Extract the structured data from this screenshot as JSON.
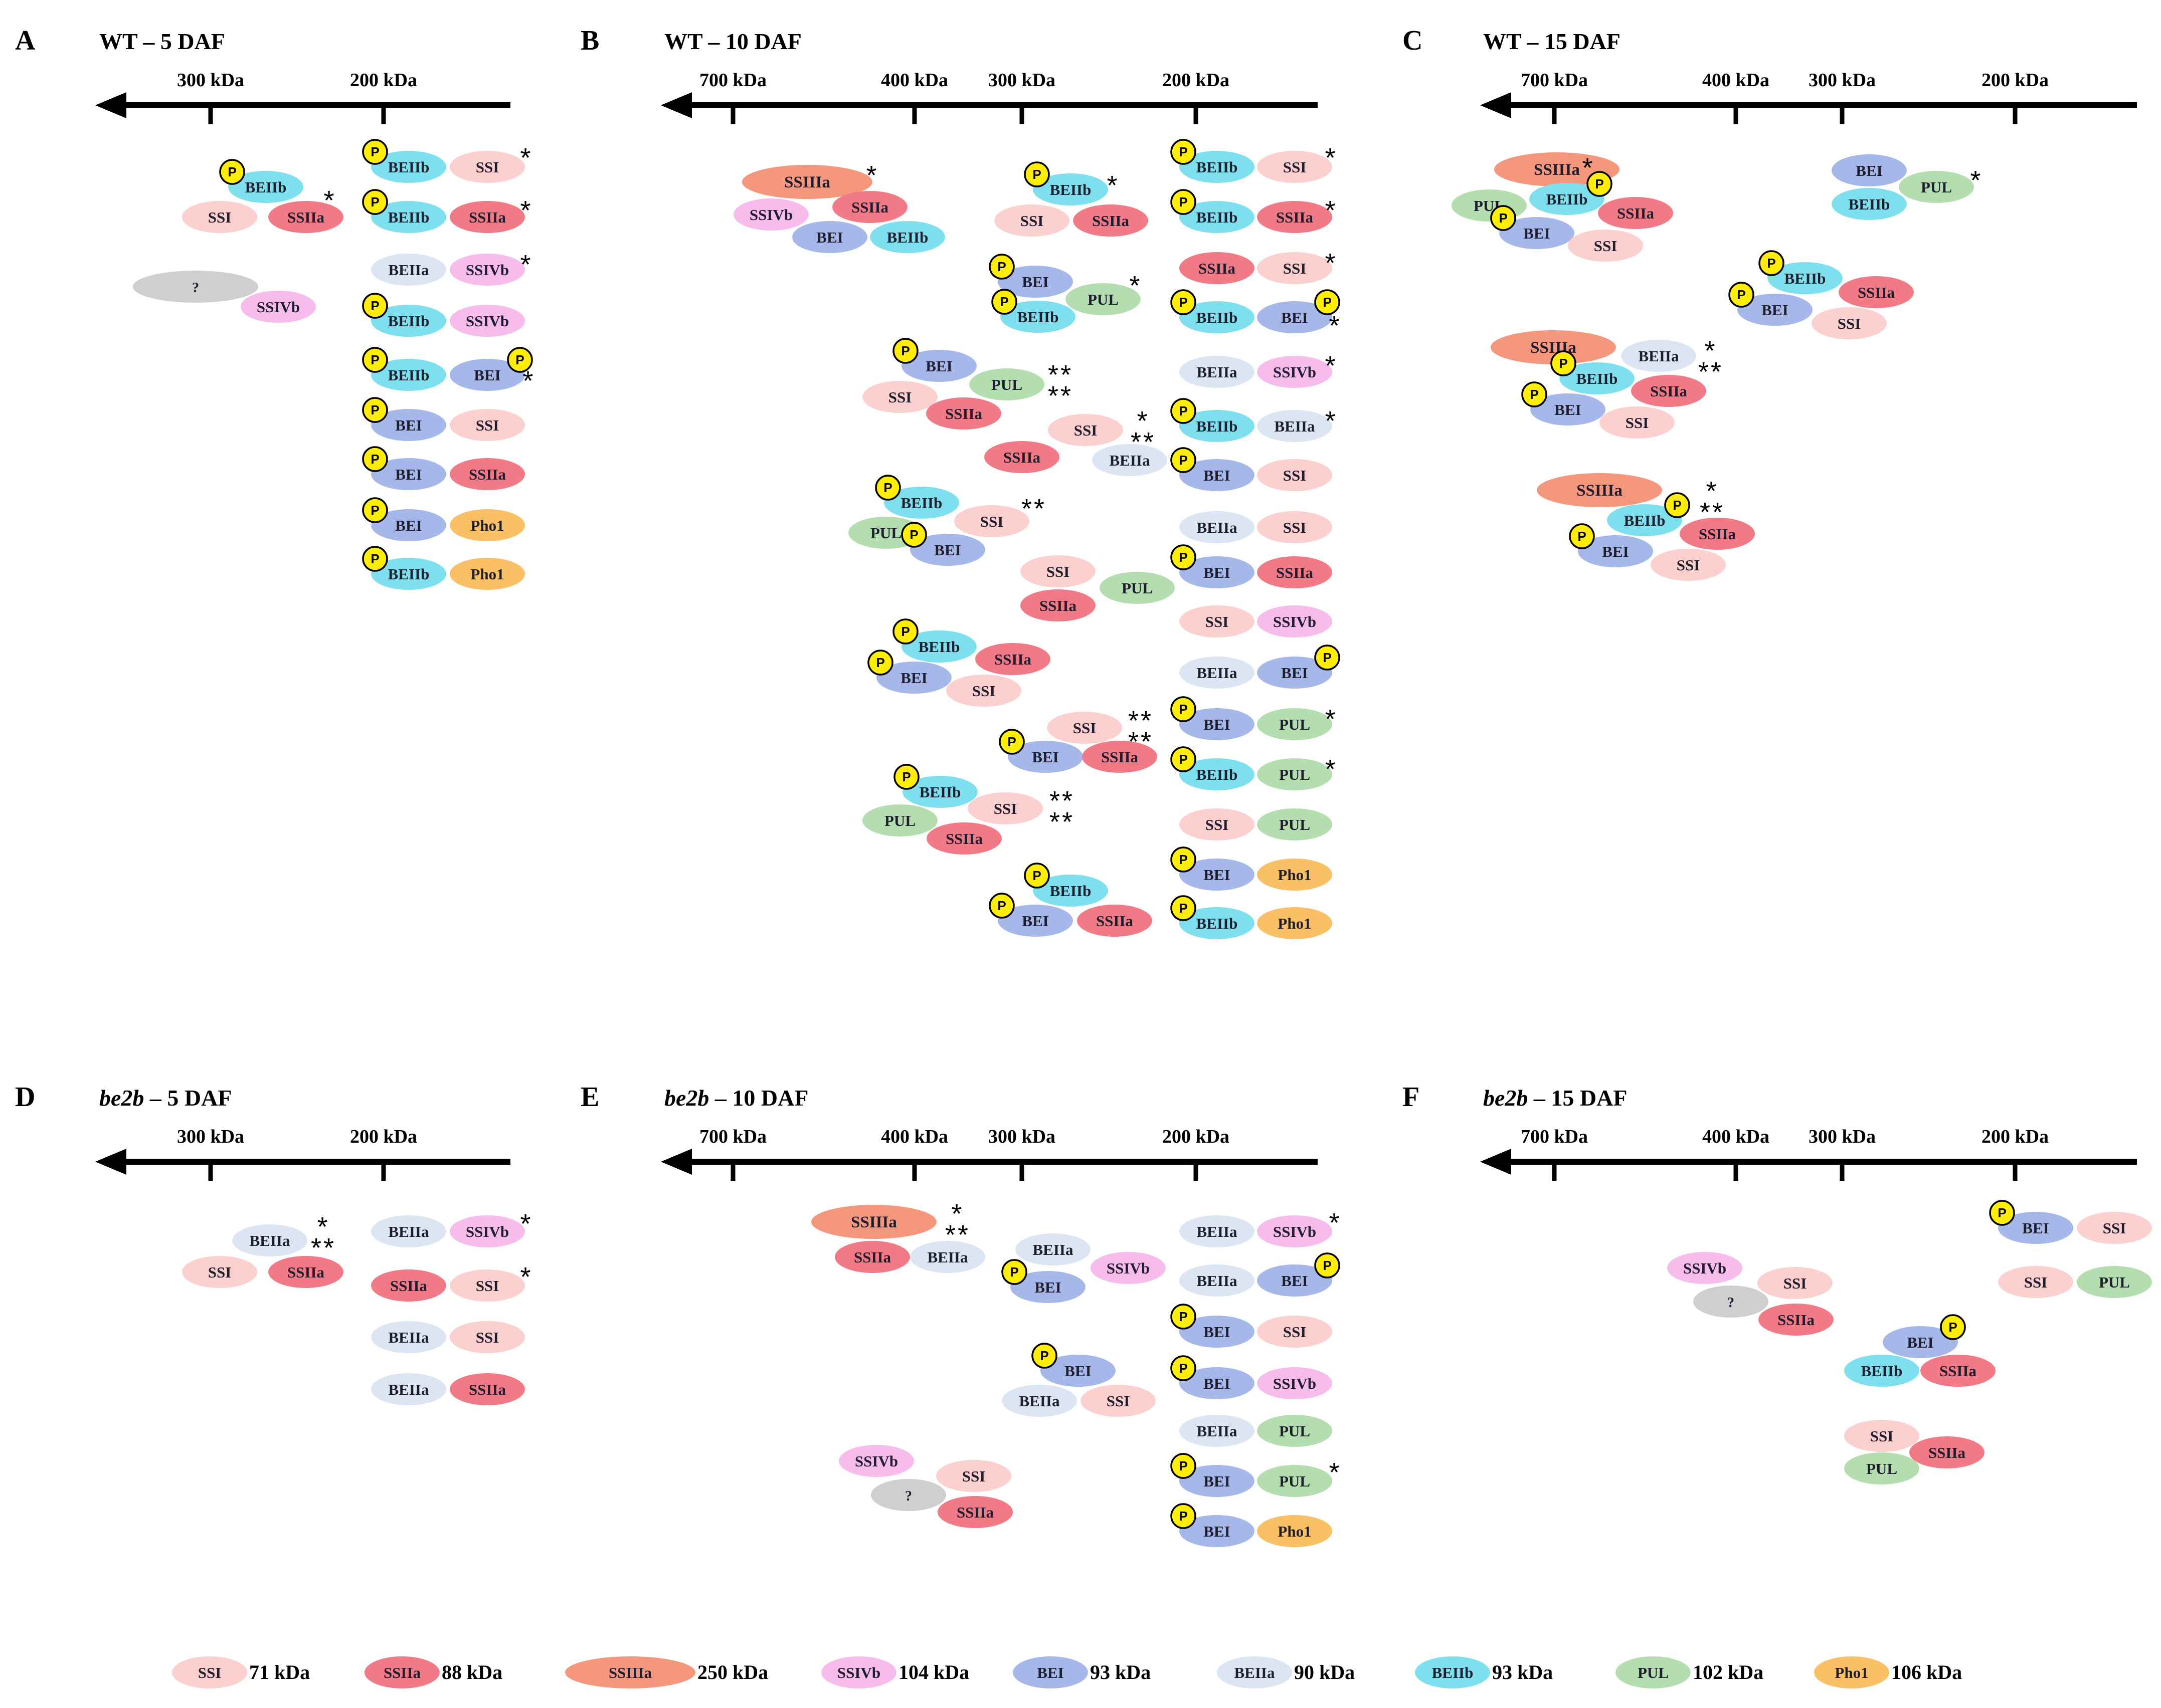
{
  "colors": {
    "SSI": "#fbd0ce",
    "SSIIa": "#f27a86",
    "SSIIIa": "#f5977c",
    "SSIVb": "#f7bcec",
    "BEI": "#a6b8ea",
    "BEIIa": "#dbe5f4",
    "BEIIb": "#7ee0ee",
    "PUL": "#b4deaf",
    "Pho1": "#f9c065",
    "unknown": "#cfcfcf",
    "phospho": "#ffee00"
  },
  "phospho_label": "P",
  "panels": [
    {
      "letter": "A",
      "title_italic": "",
      "title_rest": "WT – 5 DAF",
      "ticks": [
        {
          "label": "300 kDa"
        },
        {
          "label": "200 kDa"
        }
      ],
      "complexes": [
        {
          "marks": [
            "*"
          ],
          "proteins": [
            {
              "name": "BEIIb",
              "p": true
            },
            {
              "name": "SSI"
            },
            {
              "name": "SSIIa"
            }
          ]
        },
        {
          "marks": [],
          "proteins": [
            {
              "name": "?"
            },
            {
              "name": "SSIVb"
            }
          ]
        },
        {
          "marks": [
            "*"
          ],
          "proteins": [
            {
              "name": "BEIIb",
              "p": true
            },
            {
              "name": "SSI"
            }
          ]
        },
        {
          "marks": [
            "*"
          ],
          "proteins": [
            {
              "name": "BEIIb",
              "p": true
            },
            {
              "name": "SSIIa"
            }
          ]
        },
        {
          "marks": [
            "*"
          ],
          "proteins": [
            {
              "name": "BEIIa"
            },
            {
              "name": "SSIVb"
            }
          ]
        },
        {
          "marks": [],
          "proteins": [
            {
              "name": "BEIIb",
              "p": true
            },
            {
              "name": "SSIVb"
            }
          ]
        },
        {
          "marks": [
            "*"
          ],
          "proteins": [
            {
              "name": "BEIIb",
              "p": true
            },
            {
              "name": "BEI",
              "p": true
            }
          ]
        },
        {
          "marks": [],
          "proteins": [
            {
              "name": "BEI",
              "p": true
            },
            {
              "name": "SSI"
            }
          ]
        },
        {
          "marks": [],
          "proteins": [
            {
              "name": "BEI",
              "p": true
            },
            {
              "name": "SSIIa"
            }
          ]
        },
        {
          "marks": [],
          "proteins": [
            {
              "name": "BEI",
              "p": true
            },
            {
              "name": "Pho1"
            }
          ]
        },
        {
          "marks": [],
          "proteins": [
            {
              "name": "BEIIb",
              "p": true
            },
            {
              "name": "Pho1"
            }
          ]
        }
      ]
    },
    {
      "letter": "B",
      "title_italic": "",
      "title_rest": "WT – 10 DAF",
      "ticks": [
        {
          "label": "700 kDa"
        },
        {
          "label": "400 kDa"
        },
        {
          "label": "300 kDa"
        },
        {
          "label": "200 kDa"
        }
      ],
      "complexes": [
        {
          "marks": [
            "*"
          ],
          "proteins": [
            {
              "name": "SSIIIa"
            },
            {
              "name": "SSIVb"
            },
            {
              "name": "SSIIa"
            },
            {
              "name": "BEI"
            },
            {
              "name": "BEIIb"
            }
          ]
        },
        {
          "marks": [
            "*"
          ],
          "proteins": [
            {
              "name": "BEIIb",
              "p": true
            },
            {
              "name": "SSI"
            },
            {
              "name": "SSIIa"
            }
          ]
        },
        {
          "marks": [
            "*"
          ],
          "proteins": [
            {
              "name": "BEI",
              "p": true
            },
            {
              "name": "PUL"
            },
            {
              "name": "BEIIb",
              "p": true
            }
          ]
        },
        {
          "marks": [
            "**",
            "**"
          ],
          "proteins": [
            {
              "name": "BEI",
              "p": true
            },
            {
              "name": "PUL"
            },
            {
              "name": "SSI"
            },
            {
              "name": "SSIIa"
            }
          ]
        },
        {
          "marks": [
            "*",
            "**"
          ],
          "proteins": [
            {
              "name": "SSI"
            },
            {
              "name": "SSIIa"
            },
            {
              "name": "BEIIa"
            }
          ]
        },
        {
          "marks": [
            "**"
          ],
          "proteins": [
            {
              "name": "BEIIb",
              "p": true
            },
            {
              "name": "SSI"
            },
            {
              "name": "PUL"
            },
            {
              "name": "BEI",
              "p": true
            }
          ]
        },
        {
          "marks": [],
          "proteins": [
            {
              "name": "SSI"
            },
            {
              "name": "PUL"
            },
            {
              "name": "SSIIa"
            }
          ]
        },
        {
          "marks": [],
          "proteins": [
            {
              "name": "BEIIb",
              "p": true
            },
            {
              "name": "SSIIa"
            },
            {
              "name": "BEI",
              "p": true
            },
            {
              "name": "SSI"
            }
          ]
        },
        {
          "marks": [
            "**",
            "**"
          ],
          "proteins": [
            {
              "name": "SSI"
            },
            {
              "name": "BEI",
              "p": true
            },
            {
              "name": "SSIIa"
            }
          ]
        },
        {
          "marks": [
            "**",
            "**"
          ],
          "proteins": [
            {
              "name": "BEIIb",
              "p": true
            },
            {
              "name": "SSI"
            },
            {
              "name": "PUL"
            },
            {
              "name": "SSIIa"
            }
          ]
        },
        {
          "marks": [],
          "proteins": [
            {
              "name": "BEIIb",
              "p": true
            },
            {
              "name": "BEI",
              "p": true
            },
            {
              "name": "SSIIa"
            }
          ]
        },
        {
          "marks": [
            "*"
          ],
          "proteins": [
            {
              "name": "BEIIb",
              "p": true
            },
            {
              "name": "SSI"
            }
          ]
        },
        {
          "marks": [
            "*"
          ],
          "proteins": [
            {
              "name": "BEIIb",
              "p": true
            },
            {
              "name": "SSIIa"
            }
          ]
        },
        {
          "marks": [
            "*"
          ],
          "proteins": [
            {
              "name": "SSIIa"
            },
            {
              "name": "SSI"
            }
          ]
        },
        {
          "marks": [
            "*"
          ],
          "proteins": [
            {
              "name": "BEIIb",
              "p": true
            },
            {
              "name": "BEI",
              "p": true
            }
          ]
        },
        {
          "marks": [
            "*"
          ],
          "proteins": [
            {
              "name": "BEIIa"
            },
            {
              "name": "SSIVb"
            }
          ]
        },
        {
          "marks": [
            "*"
          ],
          "proteins": [
            {
              "name": "BEIIb",
              "p": true
            },
            {
              "name": "BEIIa"
            }
          ]
        },
        {
          "marks": [],
          "proteins": [
            {
              "name": "BEI",
              "p": true
            },
            {
              "name": "SSI"
            }
          ]
        },
        {
          "marks": [],
          "proteins": [
            {
              "name": "BEIIa"
            },
            {
              "name": "SSI"
            }
          ]
        },
        {
          "marks": [],
          "proteins": [
            {
              "name": "BEI",
              "p": true
            },
            {
              "name": "SSIIa"
            }
          ]
        },
        {
          "marks": [],
          "proteins": [
            {
              "name": "SSI"
            },
            {
              "name": "SSIVb"
            }
          ]
        },
        {
          "marks": [],
          "proteins": [
            {
              "name": "BEIIa"
            },
            {
              "name": "BEI",
              "p": true
            }
          ]
        },
        {
          "marks": [
            "*"
          ],
          "proteins": [
            {
              "name": "BEI",
              "p": true
            },
            {
              "name": "PUL"
            }
          ]
        },
        {
          "marks": [
            "*"
          ],
          "proteins": [
            {
              "name": "BEIIb",
              "p": true
            },
            {
              "name": "PUL"
            }
          ]
        },
        {
          "marks": [],
          "proteins": [
            {
              "name": "SSI"
            },
            {
              "name": "PUL"
            }
          ]
        },
        {
          "marks": [],
          "proteins": [
            {
              "name": "BEI",
              "p": true
            },
            {
              "name": "Pho1"
            }
          ]
        },
        {
          "marks": [],
          "proteins": [
            {
              "name": "BEIIb",
              "p": true
            },
            {
              "name": "Pho1"
            }
          ]
        }
      ]
    },
    {
      "letter": "C",
      "title_italic": "",
      "title_rest": "WT – 15 DAF",
      "ticks": [
        {
          "label": "700 kDa"
        },
        {
          "label": "400 kDa"
        },
        {
          "label": "300 kDa"
        },
        {
          "label": "200 kDa"
        }
      ],
      "complexes": [
        {
          "marks": [
            "*"
          ],
          "proteins": [
            {
              "name": "SSIIIa"
            },
            {
              "name": "PUL"
            },
            {
              "name": "BEIIb",
              "p": true
            },
            {
              "name": "SSIIa"
            },
            {
              "name": "BEI",
              "p": true
            },
            {
              "name": "SSI"
            }
          ]
        },
        {
          "marks": [
            "*"
          ],
          "proteins": [
            {
              "name": "BEI"
            },
            {
              "name": "PUL"
            },
            {
              "name": "BEIIb"
            }
          ]
        },
        {
          "marks": [],
          "proteins": [
            {
              "name": "BEIIb",
              "p": true
            },
            {
              "name": "SSIIa"
            },
            {
              "name": "BEI",
              "p": true
            },
            {
              "name": "SSI"
            }
          ]
        },
        {
          "marks": [
            "*",
            "**"
          ],
          "proteins": [
            {
              "name": "SSIIIa"
            },
            {
              "name": "BEIIa"
            },
            {
              "name": "BEIIb",
              "p": true
            },
            {
              "name": "SSIIa"
            },
            {
              "name": "BEI",
              "p": true
            },
            {
              "name": "SSI"
            }
          ]
        },
        {
          "marks": [
            "*",
            "**"
          ],
          "proteins": [
            {
              "name": "SSIIIa"
            },
            {
              "name": "BEIIb",
              "p": true
            },
            {
              "name": "SSIIa"
            },
            {
              "name": "BEI",
              "p": true
            },
            {
              "name": "SSI"
            }
          ]
        }
      ]
    },
    {
      "letter": "D",
      "title_italic": "be2b",
      "title_rest": " – 5 DAF",
      "ticks": [
        {
          "label": "300 kDa"
        },
        {
          "label": "200 kDa"
        }
      ],
      "complexes": [
        {
          "marks": [
            "*",
            "**"
          ],
          "proteins": [
            {
              "name": "BEIIa"
            },
            {
              "name": "SSI"
            },
            {
              "name": "SSIIa"
            }
          ]
        },
        {
          "marks": [
            "*"
          ],
          "proteins": [
            {
              "name": "BEIIa"
            },
            {
              "name": "SSIVb"
            }
          ]
        },
        {
          "marks": [
            "*"
          ],
          "proteins": [
            {
              "name": "SSIIa"
            },
            {
              "name": "SSI"
            }
          ]
        },
        {
          "marks": [],
          "proteins": [
            {
              "name": "BEIIa"
            },
            {
              "name": "SSI"
            }
          ]
        },
        {
          "marks": [],
          "proteins": [
            {
              "name": "BEIIa"
            },
            {
              "name": "SSIIa"
            }
          ]
        }
      ]
    },
    {
      "letter": "E",
      "title_italic": "be2b",
      "title_rest": " – 10 DAF",
      "ticks": [
        {
          "label": "700 kDa"
        },
        {
          "label": "400 kDa"
        },
        {
          "label": "300 kDa"
        },
        {
          "label": "200 kDa"
        }
      ],
      "complexes": [
        {
          "marks": [
            "*",
            "**"
          ],
          "proteins": [
            {
              "name": "SSIIIa"
            },
            {
              "name": "SSIIa"
            },
            {
              "name": "BEIIa"
            }
          ]
        },
        {
          "marks": [],
          "proteins": [
            {
              "name": "BEIIa"
            },
            {
              "name": "SSIVb"
            },
            {
              "name": "BEI",
              "p": true
            }
          ]
        },
        {
          "marks": [],
          "proteins": [
            {
              "name": "BEI",
              "p": true
            },
            {
              "name": "BEIIa"
            },
            {
              "name": "SSI"
            }
          ]
        },
        {
          "marks": [],
          "proteins": [
            {
              "name": "SSIVb"
            },
            {
              "name": "SSI"
            },
            {
              "name": "?"
            },
            {
              "name": "SSIIa"
            }
          ]
        },
        {
          "marks": [
            "*"
          ],
          "proteins": [
            {
              "name": "BEIIa"
            },
            {
              "name": "SSIVb"
            }
          ]
        },
        {
          "marks": [],
          "proteins": [
            {
              "name": "BEIIa"
            },
            {
              "name": "BEI",
              "p": true
            }
          ]
        },
        {
          "marks": [],
          "proteins": [
            {
              "name": "BEI",
              "p": true
            },
            {
              "name": "SSI"
            }
          ]
        },
        {
          "marks": [],
          "proteins": [
            {
              "name": "BEI",
              "p": true
            },
            {
              "name": "SSIVb"
            }
          ]
        },
        {
          "marks": [],
          "proteins": [
            {
              "name": "BEIIa"
            },
            {
              "name": "PUL"
            }
          ]
        },
        {
          "marks": [
            "*"
          ],
          "proteins": [
            {
              "name": "BEI",
              "p": true
            },
            {
              "name": "PUL"
            }
          ]
        },
        {
          "marks": [],
          "proteins": [
            {
              "name": "BEI",
              "p": true
            },
            {
              "name": "Pho1"
            }
          ]
        }
      ]
    },
    {
      "letter": "F",
      "title_italic": "be2b",
      "title_rest": " – 15 DAF",
      "ticks": [
        {
          "label": "700 kDa"
        },
        {
          "label": "400 kDa"
        },
        {
          "label": "300 kDa"
        },
        {
          "label": "200 kDa"
        }
      ],
      "complexes": [
        {
          "marks": [],
          "proteins": [
            {
              "name": "BEI",
              "p": true
            },
            {
              "name": "SSI"
            }
          ]
        },
        {
          "marks": [],
          "proteins": [
            {
              "name": "SSI"
            },
            {
              "name": "PUL"
            }
          ]
        },
        {
          "marks": [],
          "proteins": [
            {
              "name": "SSIVb"
            },
            {
              "name": "SSI"
            },
            {
              "name": "?"
            },
            {
              "name": "SSIIa"
            }
          ]
        },
        {
          "marks": [],
          "proteins": [
            {
              "name": "BEI",
              "p": true
            },
            {
              "name": "BEIIb"
            },
            {
              "name": "SSIIa"
            }
          ]
        },
        {
          "marks": [],
          "proteins": [
            {
              "name": "SSI"
            },
            {
              "name": "SSIIa"
            },
            {
              "name": "PUL"
            }
          ]
        }
      ]
    }
  ],
  "legend": [
    {
      "name": "SSI",
      "mass": "71 kDa"
    },
    {
      "name": "SSIIa",
      "mass": "88 kDa"
    },
    {
      "name": "SSIIIa",
      "mass": "250 kDa"
    },
    {
      "name": "SSIVb",
      "mass": "104 kDa"
    },
    {
      "name": "BEI",
      "mass": "93 kDa"
    },
    {
      "name": "BEIIa",
      "mass": "90 kDa"
    },
    {
      "name": "BEIIb",
      "mass": "93 kDa"
    },
    {
      "name": "PUL",
      "mass": "102 kDa"
    },
    {
      "name": "Pho1",
      "mass": "106 kDa"
    }
  ]
}
